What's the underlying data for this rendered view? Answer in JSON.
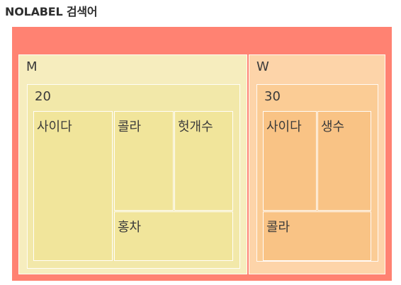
{
  "title": "NOLABEL 검색어",
  "colors": {
    "root": "#ff8272",
    "M_group": "#f6edbe",
    "M_inner": "#f2e8a9",
    "M_leaf": "#f1e59b",
    "W_group": "#fdd4a9",
    "W_inner": "#fbcc95",
    "W_leaf": "#f9c385"
  },
  "chart_data": {
    "type": "treemap",
    "title": "NOLABEL 검색어",
    "hierarchy": [
      "gender",
      "age",
      "keyword"
    ],
    "children": [
      {
        "name": "M",
        "children": [
          {
            "name": "20",
            "children": [
              {
                "name": "사이다",
                "value": 30
              },
              {
                "name": "콜라",
                "value": 20
              },
              {
                "name": "헛개수",
                "value": 20
              },
              {
                "name": "홍차",
                "value": 14
              }
            ]
          }
        ]
      },
      {
        "name": "W",
        "children": [
          {
            "name": "30",
            "children": [
              {
                "name": "사이다",
                "value": 12
              },
              {
                "name": "생수",
                "value": 12
              },
              {
                "name": "콜라",
                "value": 12
              }
            ]
          }
        ]
      }
    ]
  }
}
